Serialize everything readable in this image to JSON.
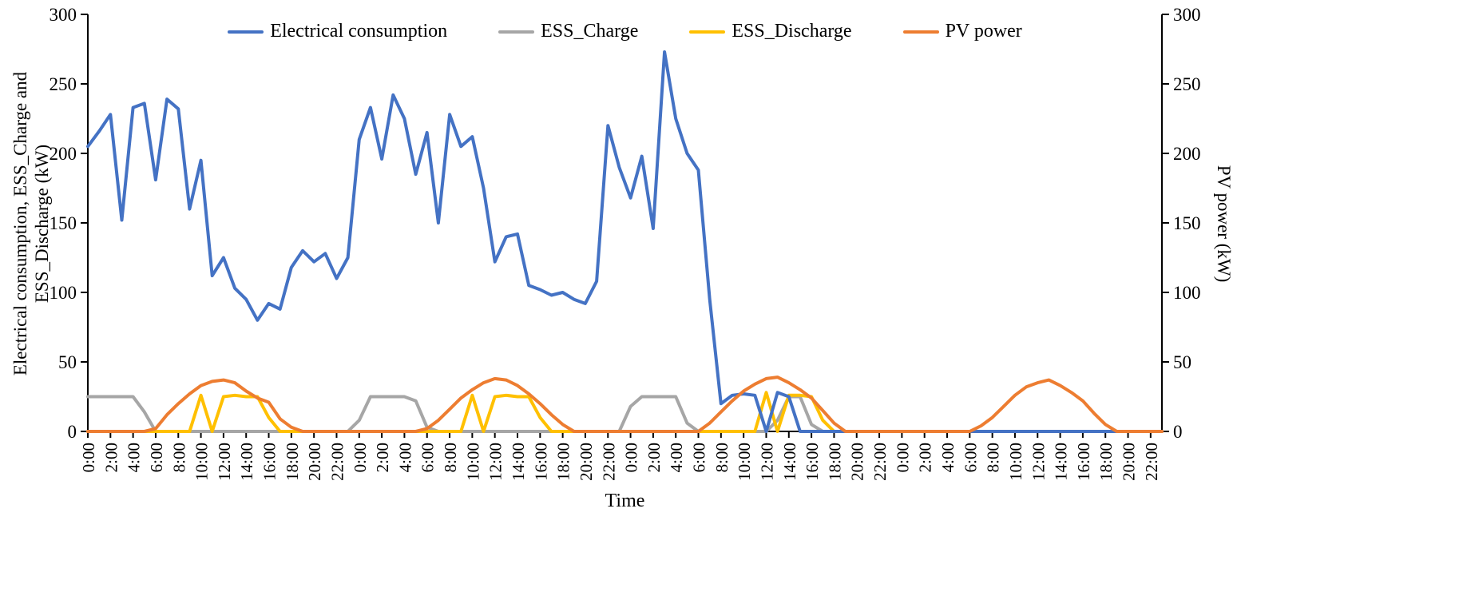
{
  "chart_data": {
    "type": "line",
    "title": "",
    "x_axis": {
      "label": "Time",
      "tick_labels": [
        "0:00",
        "2:00",
        "4:00",
        "6:00",
        "8:00",
        "10:00",
        "12:00",
        "14:00",
        "16:00",
        "18:00",
        "20:00",
        "22:00",
        "0:00",
        "2:00",
        "4:00",
        "6:00",
        "8:00",
        "10:00",
        "12:00",
        "14:00",
        "16:00",
        "18:00",
        "20:00",
        "22:00",
        "0:00",
        "2:00",
        "4:00",
        "6:00",
        "8:00",
        "10:00",
        "12:00",
        "14:00",
        "16:00",
        "18:00",
        "20:00",
        "22:00",
        "0:00",
        "2:00",
        "4:00",
        "6:00",
        "8:00",
        "10:00",
        "12:00",
        "14:00",
        "16:00",
        "18:00",
        "20:00",
        "22:00"
      ],
      "days": 4,
      "hours_per_day": 24
    },
    "left_y_axis": {
      "label": "Electrical consumption, ESS_Charge and ESS_Discharge (kW)",
      "label_line1": "Electrical  consumption,  ESS_Charge  and",
      "label_line2": "ESS_Discharge  (kW)",
      "min": 0,
      "max": 300,
      "tick_step": 50,
      "ticks": [
        0,
        50,
        100,
        150,
        200,
        250,
        300
      ]
    },
    "right_y_axis": {
      "label": "PV power (kW)",
      "min": 0,
      "max": 300,
      "tick_step": 50,
      "ticks": [
        0,
        50,
        100,
        150,
        200,
        250,
        300
      ]
    },
    "legend_position": "top",
    "grid": false,
    "series": [
      {
        "name": "Electrical consumption",
        "color": "#4472C4",
        "axis": "left",
        "values": [
          205,
          216,
          228,
          152,
          233,
          236,
          181,
          239,
          232,
          160,
          195,
          112,
          125,
          103,
          95,
          80,
          92,
          88,
          118,
          130,
          122,
          128,
          110,
          125,
          210,
          233,
          196,
          242,
          225,
          185,
          215,
          150,
          228,
          205,
          212,
          175,
          122,
          140,
          142,
          105,
          102,
          98,
          100,
          95,
          92,
          108,
          220,
          190,
          168,
          198,
          146,
          273,
          225,
          200,
          188,
          95,
          20,
          26,
          27,
          26,
          0,
          28,
          25,
          0,
          0,
          0,
          0,
          0,
          0,
          0,
          0,
          0,
          0,
          0,
          0,
          0,
          0,
          0,
          0,
          0,
          0,
          0,
          0,
          0,
          0,
          0,
          0,
          0,
          0,
          0,
          0,
          0,
          0,
          0,
          0,
          0
        ]
      },
      {
        "name": "ESS_Charge",
        "color": "#A6A6A6",
        "axis": "left",
        "values": [
          25,
          25,
          25,
          25,
          25,
          14,
          0,
          0,
          0,
          0,
          0,
          0,
          0,
          0,
          0,
          0,
          0,
          0,
          0,
          0,
          0,
          0,
          0,
          0,
          8,
          25,
          25,
          25,
          25,
          22,
          3,
          0,
          0,
          0,
          0,
          0,
          0,
          0,
          0,
          0,
          0,
          0,
          0,
          0,
          0,
          0,
          0,
          0,
          18,
          25,
          25,
          25,
          25,
          6,
          0,
          0,
          0,
          0,
          0,
          0,
          0,
          8,
          25,
          25,
          5,
          0,
          0,
          0,
          0,
          0,
          0,
          0,
          0,
          0,
          0,
          0,
          0,
          0,
          0,
          0,
          0,
          0,
          0,
          0,
          0,
          0,
          0,
          0,
          0,
          0,
          0,
          0,
          0,
          0,
          0,
          0
        ]
      },
      {
        "name": "ESS_Discharge",
        "color": "#FFC000",
        "axis": "left",
        "values": [
          0,
          0,
          0,
          0,
          0,
          0,
          0,
          0,
          0,
          0,
          26,
          0,
          25,
          26,
          25,
          25,
          10,
          0,
          0,
          0,
          0,
          0,
          0,
          0,
          0,
          0,
          0,
          0,
          0,
          0,
          0,
          0,
          0,
          0,
          26,
          0,
          25,
          26,
          25,
          25,
          10,
          0,
          0,
          0,
          0,
          0,
          0,
          0,
          0,
          0,
          0,
          0,
          0,
          0,
          0,
          0,
          0,
          0,
          0,
          0,
          28,
          0,
          26,
          26,
          25,
          8,
          0,
          0,
          0,
          0,
          0,
          0,
          0,
          0,
          0,
          0,
          0,
          0,
          0,
          0,
          0,
          0,
          0,
          0,
          0,
          0,
          0,
          0,
          0,
          0,
          0,
          0,
          0,
          0,
          0,
          0
        ]
      },
      {
        "name": "PV power",
        "color": "#ED7D31",
        "axis": "right",
        "values": [
          0,
          0,
          0,
          0,
          0,
          0,
          2,
          12,
          20,
          27,
          33,
          36,
          37,
          35,
          29,
          24,
          21,
          9,
          3,
          0,
          0,
          0,
          0,
          0,
          0,
          0,
          0,
          0,
          0,
          0,
          2,
          8,
          16,
          24,
          30,
          35,
          38,
          37,
          33,
          27,
          20,
          12,
          5,
          0,
          0,
          0,
          0,
          0,
          0,
          0,
          0,
          0,
          0,
          0,
          0,
          6,
          14,
          22,
          29,
          34,
          38,
          39,
          35,
          30,
          24,
          15,
          6,
          0,
          0,
          0,
          0,
          0,
          0,
          0,
          0,
          0,
          0,
          0,
          0,
          4,
          10,
          18,
          26,
          32,
          35,
          37,
          33,
          28,
          22,
          13,
          5,
          0,
          0,
          0,
          0,
          0
        ]
      }
    ]
  }
}
